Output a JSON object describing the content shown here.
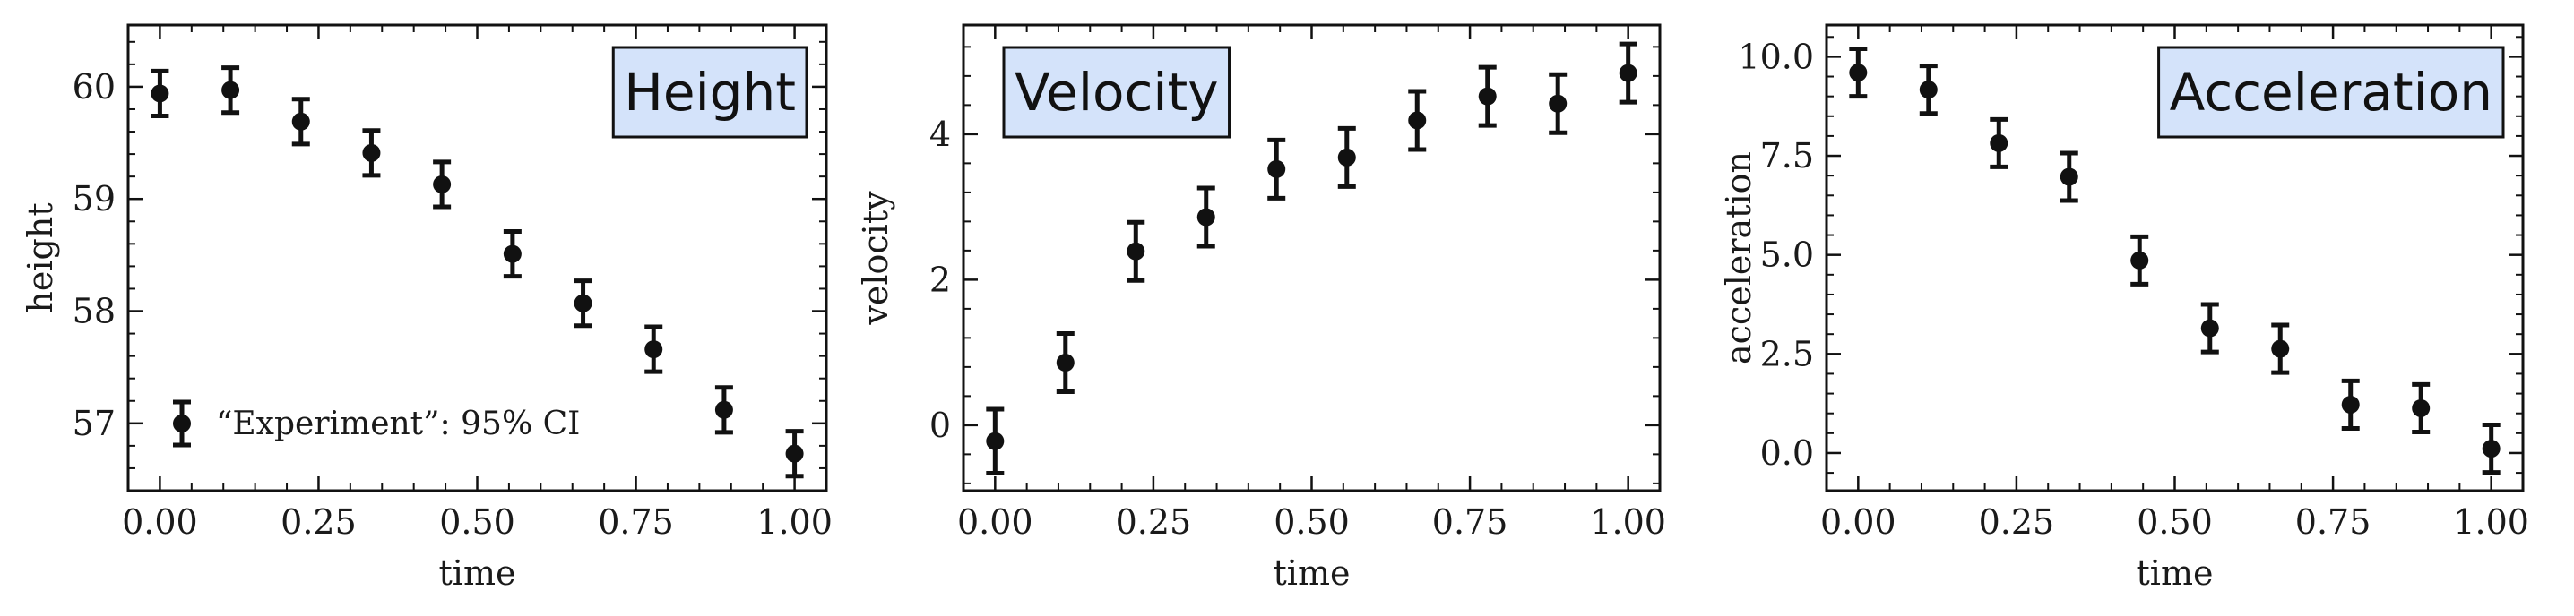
{
  "figure": {
    "background": "#ffffff",
    "ink": "#111111",
    "title_box_fill": "#d4e3fa"
  },
  "chart_data": [
    {
      "type": "scatter",
      "title": "Height",
      "xlabel": "time",
      "ylabel": "height",
      "xlim": [
        -0.05,
        1.05
      ],
      "ylim": [
        56.4,
        60.55
      ],
      "xticks": [
        0.0,
        0.25,
        0.5,
        0.75,
        1.0
      ],
      "xtick_labels": [
        "0.00",
        "0.25",
        "0.50",
        "0.75",
        "1.00"
      ],
      "yticks": [
        57,
        58,
        59,
        60
      ],
      "ytick_labels": [
        "57",
        "58",
        "59",
        "60"
      ],
      "minor_x": 0.05,
      "minor_y": 0.2,
      "title_position": "top-right",
      "legend": {
        "label": "“Experiment”: 95% CI",
        "position": "lower-left"
      },
      "series": [
        {
          "name": "“Experiment”: 95% CI",
          "x": [
            0.0,
            0.1111,
            0.2222,
            0.3333,
            0.4444,
            0.5556,
            0.6667,
            0.7778,
            0.8889,
            1.0
          ],
          "y": [
            59.94,
            59.97,
            59.69,
            59.41,
            59.13,
            58.51,
            58.07,
            57.66,
            57.12,
            56.73
          ],
          "err": [
            0.2,
            0.2,
            0.2,
            0.2,
            0.2,
            0.2,
            0.2,
            0.2,
            0.2,
            0.2
          ]
        }
      ]
    },
    {
      "type": "scatter",
      "title": "Velocity",
      "xlabel": "time",
      "ylabel": "velocity",
      "xlim": [
        -0.05,
        1.05
      ],
      "ylim": [
        -0.9,
        5.5
      ],
      "xticks": [
        0.0,
        0.25,
        0.5,
        0.75,
        1.0
      ],
      "xtick_labels": [
        "0.00",
        "0.25",
        "0.50",
        "0.75",
        "1.00"
      ],
      "yticks": [
        0,
        2,
        4
      ],
      "ytick_labels": [
        "0",
        "2",
        "4"
      ],
      "minor_x": 0.05,
      "minor_y": 0.4,
      "title_position": "top-left",
      "series": [
        {
          "name": "velocity",
          "x": [
            0.0,
            0.1111,
            0.2222,
            0.3333,
            0.4444,
            0.5556,
            0.6667,
            0.7778,
            0.8889,
            1.0
          ],
          "y": [
            -0.22,
            0.86,
            2.39,
            2.86,
            3.52,
            3.68,
            4.19,
            4.52,
            4.42,
            4.84
          ],
          "err": [
            0.44,
            0.4,
            0.4,
            0.4,
            0.4,
            0.4,
            0.4,
            0.4,
            0.4,
            0.4
          ]
        }
      ]
    },
    {
      "type": "scatter",
      "title": "Acceleration",
      "xlabel": "time",
      "ylabel": "acceleration",
      "xlim": [
        -0.05,
        1.05
      ],
      "ylim": [
        -0.95,
        10.8
      ],
      "xticks": [
        0.0,
        0.25,
        0.5,
        0.75,
        1.0
      ],
      "xtick_labels": [
        "0.00",
        "0.25",
        "0.50",
        "0.75",
        "1.00"
      ],
      "yticks": [
        0.0,
        2.5,
        5.0,
        7.5,
        10.0
      ],
      "ytick_labels": [
        "0.0",
        "2.5",
        "5.0",
        "7.5",
        "10.0"
      ],
      "minor_x": 0.05,
      "minor_y": 0.5,
      "title_position": "top-right",
      "series": [
        {
          "name": "acceleration",
          "x": [
            0.0,
            0.1111,
            0.2222,
            0.3333,
            0.4444,
            0.5556,
            0.6667,
            0.7778,
            0.8889,
            1.0
          ],
          "y": [
            9.6,
            9.17,
            7.82,
            6.97,
            4.86,
            3.15,
            2.63,
            1.22,
            1.13,
            0.11
          ],
          "err": [
            0.6,
            0.6,
            0.6,
            0.6,
            0.6,
            0.6,
            0.6,
            0.6,
            0.6,
            0.6
          ]
        }
      ]
    }
  ]
}
